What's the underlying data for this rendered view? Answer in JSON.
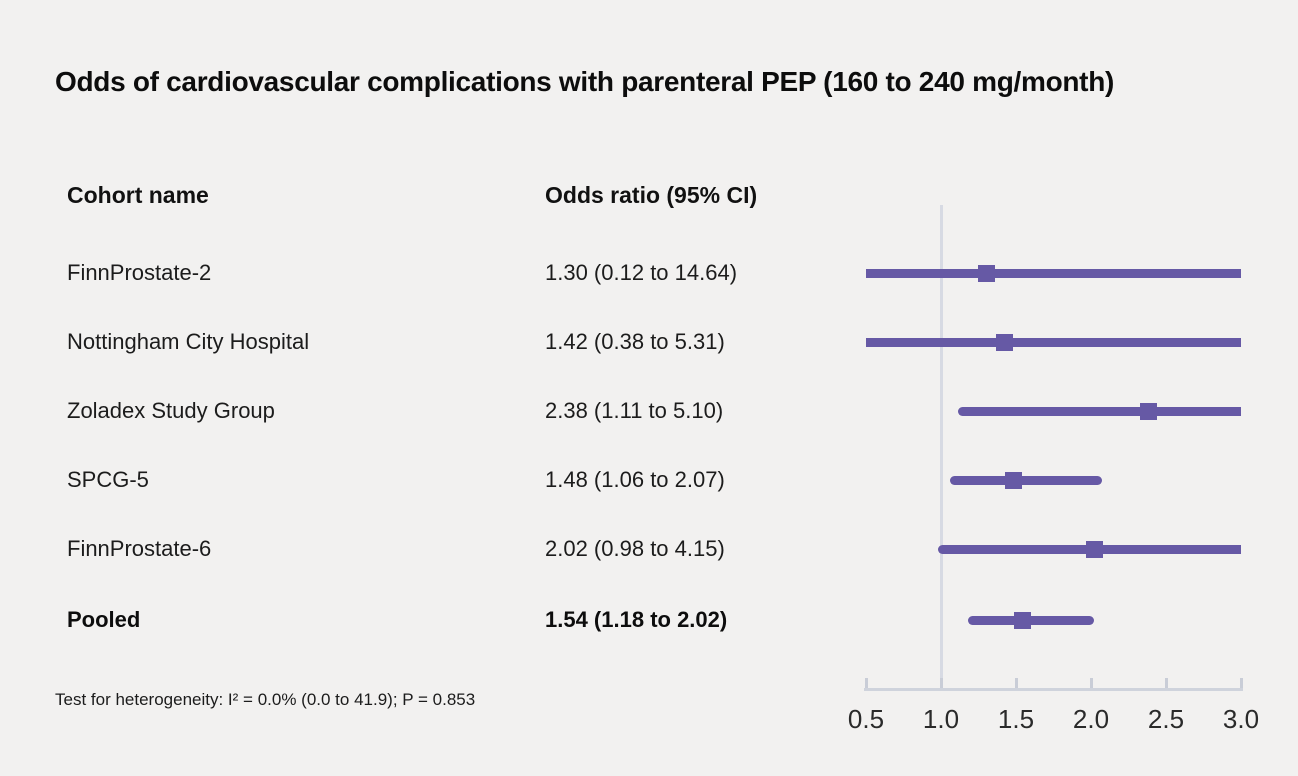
{
  "title": "Odds of cardiovascular complications with parenteral PEP (160 to 240 mg/month)",
  "columns": {
    "cohort": "Cohort name",
    "odds_ratio": "Odds ratio (95% CI)"
  },
  "footnote": "Test for heterogeneity: I² = 0.0% (0.0 to 41.9); P = 0.853",
  "colors": {
    "marker_purple": "#6659A5",
    "reference_line": "#d7dae3",
    "axis": "#cfd3dc",
    "background": "#f2f1f0"
  },
  "chart_data": {
    "type": "forest",
    "title": "Odds of cardiovascular complications with parenteral PEP (160 to 240 mg/month)",
    "xlabel": "Odds ratio (95% CI)",
    "axis": {
      "min": 0.5,
      "max": 3.0,
      "ticks": [
        0.5,
        1.0,
        1.5,
        2.0,
        2.5,
        3.0
      ],
      "tick_labels": [
        "0.5",
        "1.0",
        "1.5",
        "2.0",
        "2.5",
        "3.0"
      ],
      "reference_line": 1.0,
      "grid": false
    },
    "rows": [
      {
        "cohort": "FinnProstate-2",
        "or": 1.3,
        "ci_low": 0.12,
        "ci_high": 14.64,
        "label": "1.30 (0.12 to 14.64)",
        "pooled": false
      },
      {
        "cohort": "Nottingham City Hospital",
        "or": 1.42,
        "ci_low": 0.38,
        "ci_high": 5.31,
        "label": "1.42 (0.38 to 5.31)",
        "pooled": false
      },
      {
        "cohort": "Zoladex Study Group",
        "or": 2.38,
        "ci_low": 1.11,
        "ci_high": 5.1,
        "label": "2.38 (1.11 to 5.10)",
        "pooled": false
      },
      {
        "cohort": "SPCG-5",
        "or": 1.48,
        "ci_low": 1.06,
        "ci_high": 2.07,
        "label": "1.48 (1.06 to 2.07)",
        "pooled": false
      },
      {
        "cohort": "FinnProstate-6",
        "or": 2.02,
        "ci_low": 0.98,
        "ci_high": 4.15,
        "label": "2.02 (0.98 to 4.15)",
        "pooled": false
      },
      {
        "cohort": "Pooled",
        "or": 1.54,
        "ci_low": 1.18,
        "ci_high": 2.02,
        "label": "1.54 (1.18 to 2.02)",
        "pooled": true
      }
    ],
    "heterogeneity": "Test for heterogeneity: I² = 0.0% (0.0 to 41.9); P = 0.853"
  }
}
